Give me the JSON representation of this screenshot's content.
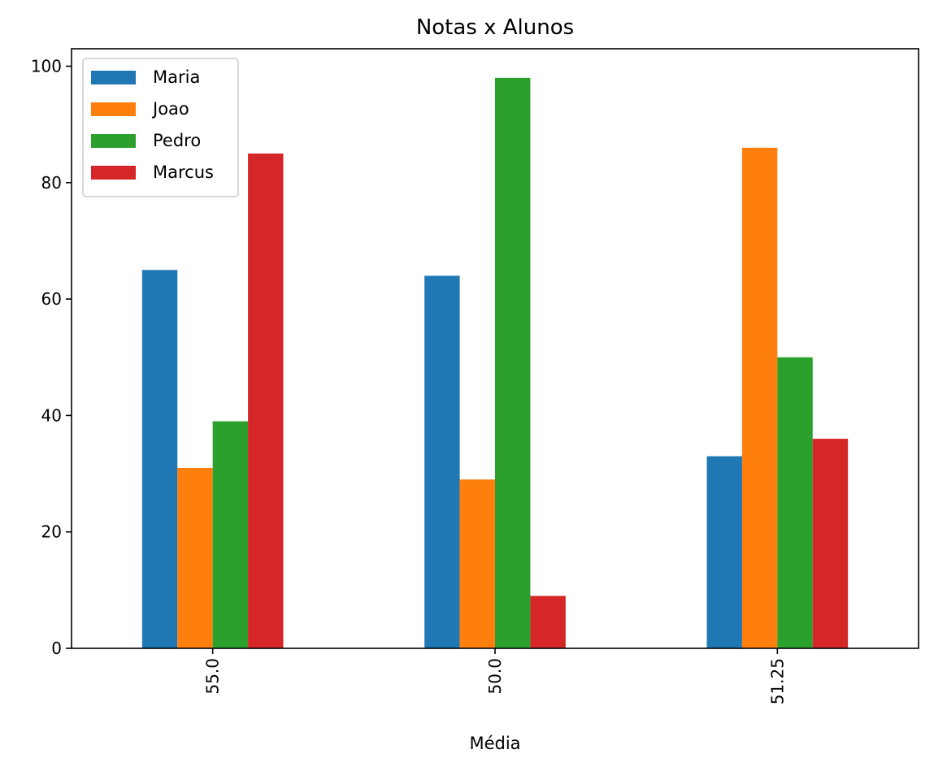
{
  "chart_data": {
    "type": "bar",
    "title": "Notas x Alunos",
    "xlabel": "Média",
    "ylabel": "",
    "categories": [
      "55.0",
      "50.0",
      "51.25"
    ],
    "ylim": [
      0,
      103
    ],
    "yticks": [
      0,
      20,
      40,
      60,
      80,
      100
    ],
    "grid": false,
    "legend_position": "top-left",
    "series": [
      {
        "name": "Maria",
        "color": "#1f77b4",
        "values": [
          65,
          64,
          33
        ]
      },
      {
        "name": "Joao",
        "color": "#ff7f0e",
        "values": [
          31,
          29,
          86
        ]
      },
      {
        "name": "Pedro",
        "color": "#2ca02c",
        "values": [
          39,
          98,
          50
        ]
      },
      {
        "name": "Marcus",
        "color": "#d62728",
        "values": [
          85,
          9,
          36
        ]
      }
    ]
  }
}
